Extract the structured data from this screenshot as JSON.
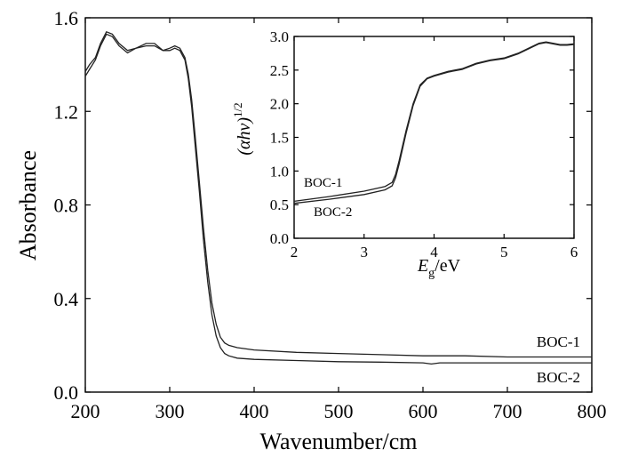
{
  "chart_data": [
    {
      "type": "line",
      "xlabel": "Wavenumber/cm",
      "ylabel": "Absorbance",
      "xlim": [
        200,
        800
      ],
      "ylim": [
        0.0,
        1.6
      ],
      "xticks": [
        200,
        300,
        400,
        500,
        600,
        700,
        800
      ],
      "xtick_labels": [
        "200",
        "300",
        "400",
        "500",
        "600",
        "700",
        "800"
      ],
      "yticks": [
        0.0,
        0.4,
        0.8,
        1.2,
        1.6
      ],
      "ytick_labels": [
        "0.0",
        "0.4",
        "0.8",
        "1.2",
        "1.6"
      ],
      "grid": false,
      "series": [
        {
          "name": "BOC-1",
          "x": [
            200,
            205,
            212,
            218,
            225,
            232,
            240,
            250,
            260,
            272,
            282,
            292,
            300,
            306,
            312,
            318,
            322,
            326,
            330,
            335,
            340,
            345,
            350,
            355,
            360,
            365,
            370,
            380,
            400,
            450,
            500,
            550,
            600,
            650,
            700,
            750,
            800
          ],
          "y": [
            1.37,
            1.4,
            1.43,
            1.49,
            1.54,
            1.53,
            1.49,
            1.46,
            1.47,
            1.49,
            1.49,
            1.46,
            1.47,
            1.48,
            1.47,
            1.43,
            1.36,
            1.25,
            1.1,
            0.9,
            0.7,
            0.52,
            0.38,
            0.29,
            0.235,
            0.21,
            0.2,
            0.19,
            0.18,
            0.17,
            0.165,
            0.16,
            0.155,
            0.155,
            0.15,
            0.15,
            0.15
          ]
        },
        {
          "name": "BOC-2",
          "x": [
            200,
            205,
            212,
            218,
            225,
            232,
            240,
            250,
            260,
            272,
            282,
            292,
            300,
            306,
            312,
            318,
            322,
            326,
            330,
            335,
            340,
            345,
            350,
            355,
            360,
            365,
            370,
            380,
            400,
            450,
            500,
            550,
            600,
            610,
            620,
            650,
            700,
            750,
            800
          ],
          "y": [
            1.35,
            1.38,
            1.42,
            1.48,
            1.53,
            1.52,
            1.48,
            1.45,
            1.47,
            1.48,
            1.48,
            1.46,
            1.46,
            1.47,
            1.46,
            1.42,
            1.34,
            1.22,
            1.06,
            0.86,
            0.65,
            0.47,
            0.33,
            0.24,
            0.19,
            0.165,
            0.155,
            0.145,
            0.14,
            0.135,
            0.13,
            0.128,
            0.125,
            0.12,
            0.125,
            0.125,
            0.125,
            0.125,
            0.125
          ]
        }
      ],
      "annotations": [
        "BOC-1",
        "BOC-2"
      ]
    },
    {
      "type": "line",
      "xlabel_parts": [
        "E",
        "g",
        "/eV"
      ],
      "ylabel_parts": [
        "(αhv)",
        "1/2"
      ],
      "xlim": [
        2,
        6
      ],
      "ylim": [
        0.0,
        3.0
      ],
      "xticks": [
        2,
        3,
        4,
        5,
        6
      ],
      "xtick_labels": [
        "2",
        "3",
        "4",
        "5",
        "6"
      ],
      "yticks": [
        0.0,
        0.5,
        1.0,
        1.5,
        2.0,
        2.5,
        3.0
      ],
      "ytick_labels": [
        "0.0",
        "0.5",
        "1.0",
        "1.5",
        "2.0",
        "2.5",
        "3.0"
      ],
      "grid": false,
      "series": [
        {
          "name": "BOC-1",
          "x": [
            2.0,
            2.5,
            3.0,
            3.3,
            3.4,
            3.45,
            3.5,
            3.6,
            3.7,
            3.8,
            3.9,
            4.0,
            4.2,
            4.4,
            4.6,
            4.8,
            5.0,
            5.2,
            5.4,
            5.5,
            5.6,
            5.7,
            5.8,
            5.9,
            6.0
          ],
          "y": [
            0.55,
            0.62,
            0.7,
            0.77,
            0.83,
            0.95,
            1.15,
            1.6,
            2.0,
            2.28,
            2.38,
            2.42,
            2.48,
            2.52,
            2.6,
            2.65,
            2.68,
            2.75,
            2.85,
            2.9,
            2.92,
            2.9,
            2.88,
            2.88,
            2.89
          ]
        },
        {
          "name": "BOC-2",
          "x": [
            2.0,
            2.5,
            3.0,
            3.3,
            3.4,
            3.45,
            3.5,
            3.6,
            3.7,
            3.8,
            3.9,
            4.0,
            4.2,
            4.4,
            4.6,
            4.8,
            5.0,
            5.2,
            5.4,
            5.5,
            5.6,
            5.7,
            5.8,
            5.9,
            6.0
          ],
          "y": [
            0.52,
            0.58,
            0.65,
            0.72,
            0.78,
            0.9,
            1.1,
            1.56,
            1.97,
            2.26,
            2.37,
            2.41,
            2.47,
            2.51,
            2.59,
            2.64,
            2.67,
            2.74,
            2.84,
            2.89,
            2.91,
            2.89,
            2.87,
            2.87,
            2.88
          ]
        }
      ],
      "annotations": [
        "BOC-1",
        "BOC-2"
      ]
    }
  ]
}
